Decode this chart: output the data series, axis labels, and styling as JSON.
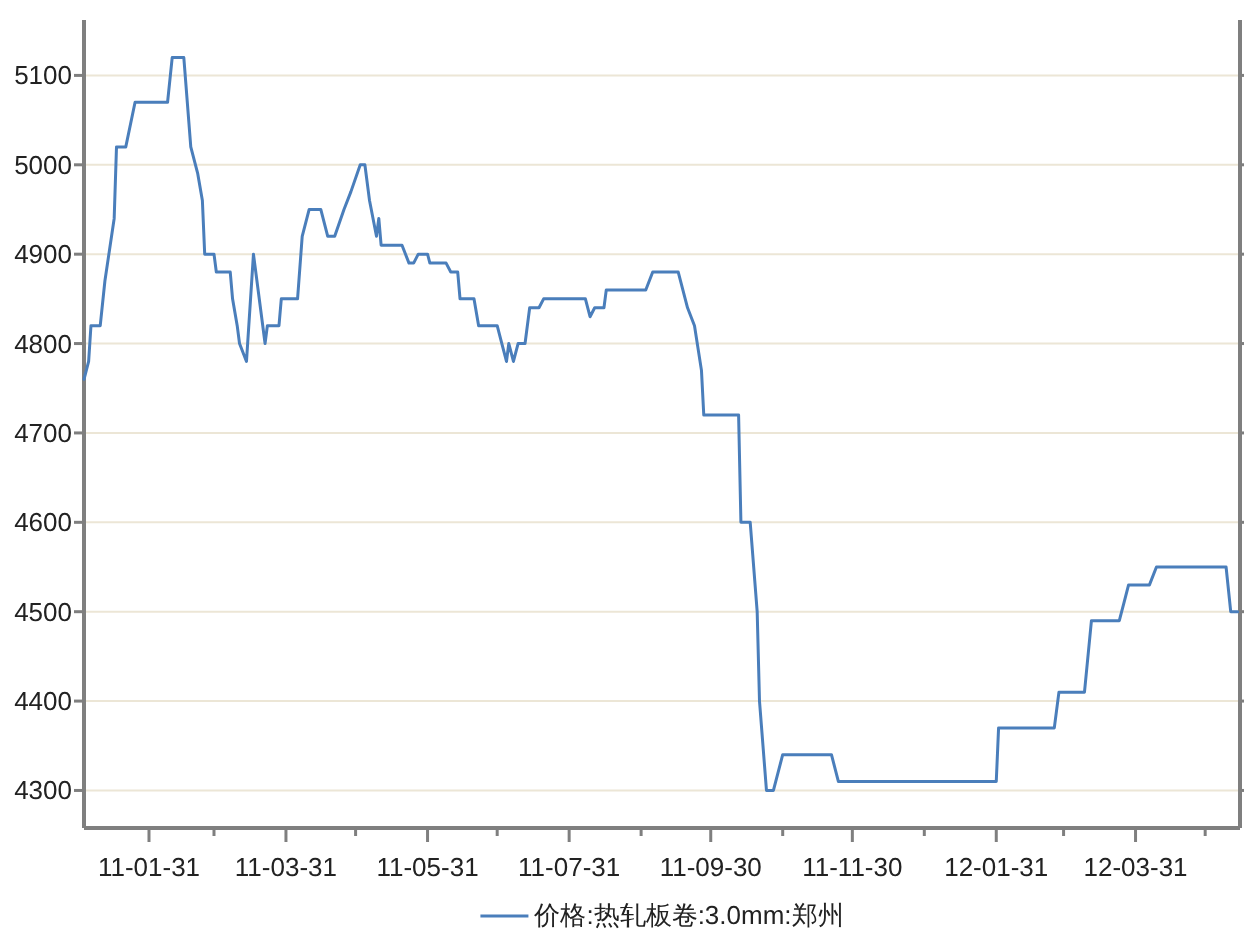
{
  "chart_data": {
    "type": "line",
    "legend": "bottom",
    "grid": "y",
    "xlim": [
      "2011-01-03",
      "2012-05-15"
    ],
    "xticks": [
      {
        "value": "2011-01-31",
        "label": "11-01-31"
      },
      {
        "value": "2011-02-28",
        "label": null
      },
      {
        "value": "2011-03-31",
        "label": "11-03-31"
      },
      {
        "value": "2011-04-30",
        "label": null
      },
      {
        "value": "2011-05-31",
        "label": "11-05-31"
      },
      {
        "value": "2011-06-30",
        "label": null
      },
      {
        "value": "2011-07-31",
        "label": "11-07-31"
      },
      {
        "value": "2011-08-31",
        "label": null
      },
      {
        "value": "2011-09-30",
        "label": "11-09-30"
      },
      {
        "value": "2011-10-31",
        "label": null
      },
      {
        "value": "2011-11-30",
        "label": "11-11-30"
      },
      {
        "value": "2011-12-31",
        "label": null
      },
      {
        "value": "2012-01-31",
        "label": "12-01-31"
      },
      {
        "value": "2012-02-29",
        "label": null
      },
      {
        "value": "2012-03-31",
        "label": "12-03-31"
      },
      {
        "value": "2012-04-30",
        "label": null
      }
    ],
    "ylim": [
      4258,
      5162
    ],
    "yticks": [
      4300,
      4400,
      4500,
      4600,
      4700,
      4800,
      4900,
      5000,
      5100
    ],
    "series": [
      {
        "name": "价格:热轧板卷:3.0mm:郑州",
        "color": "#4a7ebb",
        "x": [
          "2011-01-03",
          "2011-01-05",
          "2011-01-06",
          "2011-01-10",
          "2011-01-12",
          "2011-01-16",
          "2011-01-17",
          "2011-01-21",
          "2011-01-25",
          "2011-02-08",
          "2011-02-10",
          "2011-02-15",
          "2011-02-18",
          "2011-02-21",
          "2011-02-23",
          "2011-02-24",
          "2011-02-28",
          "2011-03-01",
          "2011-03-07",
          "2011-03-08",
          "2011-03-10",
          "2011-03-11",
          "2011-03-14",
          "2011-03-17",
          "2011-03-22",
          "2011-03-23",
          "2011-03-28",
          "2011-03-29",
          "2011-04-05",
          "2011-04-07",
          "2011-04-10",
          "2011-04-15",
          "2011-04-18",
          "2011-04-21",
          "2011-04-25",
          "2011-04-28",
          "2011-05-02",
          "2011-05-04",
          "2011-05-06",
          "2011-05-09",
          "2011-05-10",
          "2011-05-11",
          "2011-05-20",
          "2011-05-23",
          "2011-05-25",
          "2011-05-27",
          "2011-05-31",
          "2011-06-01",
          "2011-06-08",
          "2011-06-10",
          "2011-06-13",
          "2011-06-14",
          "2011-06-20",
          "2011-06-22",
          "2011-06-30",
          "2011-07-02",
          "2011-07-04",
          "2011-07-05",
          "2011-07-07",
          "2011-07-09",
          "2011-07-12",
          "2011-07-14",
          "2011-07-18",
          "2011-07-20",
          "2011-08-07",
          "2011-08-09",
          "2011-08-11",
          "2011-08-15",
          "2011-08-16",
          "2011-09-02",
          "2011-09-05",
          "2011-09-16",
          "2011-09-20",
          "2011-09-23",
          "2011-09-26",
          "2011-09-27",
          "2011-10-12",
          "2011-10-13",
          "2011-10-17",
          "2011-10-20",
          "2011-10-21",
          "2011-10-24",
          "2011-10-27",
          "2011-10-31",
          "2011-11-21",
          "2011-11-24",
          "2012-01-31",
          "2012-02-01",
          "2012-02-25",
          "2012-02-27",
          "2012-03-09",
          "2012-03-12",
          "2012-03-24",
          "2012-03-26",
          "2012-03-28",
          "2012-04-06",
          "2012-04-09",
          "2012-05-09",
          "2012-05-11",
          "2012-05-14"
        ],
        "values": [
          4760,
          4780,
          4820,
          4820,
          4870,
          4940,
          5020,
          5020,
          5070,
          5070,
          5120,
          5120,
          5020,
          4990,
          4960,
          4900,
          4900,
          4880,
          4880,
          4850,
          4820,
          4800,
          4780,
          4900,
          4800,
          4820,
          4820,
          4850,
          4850,
          4920,
          4950,
          4950,
          4920,
          4920,
          4950,
          4970,
          5000,
          5000,
          4960,
          4920,
          4940,
          4910,
          4910,
          4890,
          4890,
          4900,
          4900,
          4890,
          4890,
          4880,
          4880,
          4850,
          4850,
          4820,
          4820,
          4800,
          4780,
          4800,
          4780,
          4800,
          4800,
          4840,
          4840,
          4850,
          4850,
          4830,
          4840,
          4840,
          4860,
          4860,
          4880,
          4880,
          4840,
          4820,
          4770,
          4720,
          4720,
          4600,
          4600,
          4500,
          4400,
          4300,
          4300,
          4340,
          4340,
          4310,
          4310,
          4370,
          4370,
          4410,
          4410,
          4490,
          4490,
          4510,
          4530,
          4530,
          4550,
          4550,
          4500,
          4500
        ]
      }
    ]
  }
}
